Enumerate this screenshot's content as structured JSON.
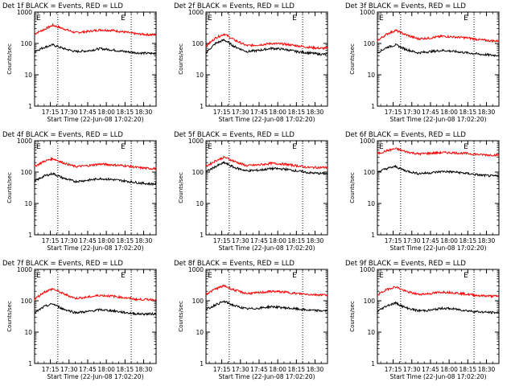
{
  "figure": {
    "ylabel": "Counts/sec",
    "xlabel": "Start Time (22-Jun-08 17:02:20)",
    "x_ticks": [
      "17:15",
      "17:30",
      "17:45",
      "18:00",
      "18:15",
      "18:30"
    ],
    "y_ticks": [
      "1",
      "10",
      "100",
      "1000"
    ],
    "marker_letter": "E",
    "colors": {
      "events": "#000000",
      "lld": "#ff0000",
      "axes": "#000000"
    }
  },
  "chart_data": [
    {
      "type": "line",
      "title": "Det 1f BLACK = Events, RED = LLD",
      "x_ticks": [
        "17:15",
        "17:30",
        "17:45",
        "18:00",
        "18:15",
        "18:30"
      ],
      "xlim": [
        "17:02:20",
        "18:40:00"
      ],
      "ylim": [
        1,
        1000
      ],
      "yscale": "log",
      "x": [
        "17:02",
        "17:10",
        "17:17",
        "17:25",
        "17:35",
        "17:45",
        "17:55",
        "18:05",
        "18:15",
        "18:25",
        "18:35"
      ],
      "series": [
        {
          "name": "LLD",
          "color": "#ff0000",
          "values": [
            200,
            280,
            380,
            300,
            220,
            240,
            270,
            260,
            230,
            200,
            190
          ]
        },
        {
          "name": "Events",
          "color": "#000000",
          "values": [
            55,
            75,
            90,
            70,
            55,
            58,
            68,
            62,
            55,
            50,
            48
          ]
        }
      ]
    },
    {
      "type": "line",
      "title": "Det 2f BLACK = Events, RED = LLD",
      "x_ticks": [
        "17:15",
        "17:30",
        "17:45",
        "18:00",
        "18:15",
        "18:30"
      ],
      "xlim": [
        "17:02:20",
        "18:40:00"
      ],
      "ylim": [
        1,
        1000
      ],
      "yscale": "log",
      "x": [
        "17:02",
        "17:10",
        "17:17",
        "17:25",
        "17:35",
        "17:45",
        "17:55",
        "18:05",
        "18:15",
        "18:25",
        "18:35"
      ],
      "series": [
        {
          "name": "LLD",
          "color": "#ff0000",
          "values": [
            80,
            150,
            200,
            130,
            85,
            90,
            100,
            95,
            85,
            75,
            70
          ]
        },
        {
          "name": "Events",
          "color": "#000000",
          "values": [
            50,
            100,
            130,
            80,
            55,
            60,
            70,
            65,
            55,
            50,
            45
          ]
        }
      ]
    },
    {
      "type": "line",
      "title": "Det 3f BLACK = Events, RED = LLD",
      "x_ticks": [
        "17:15",
        "17:30",
        "17:45",
        "18:00",
        "18:15",
        "18:30"
      ],
      "xlim": [
        "17:02:20",
        "18:40:00"
      ],
      "ylim": [
        1,
        1000
      ],
      "yscale": "log",
      "x": [
        "17:02",
        "17:10",
        "17:17",
        "17:25",
        "17:35",
        "17:45",
        "17:55",
        "18:05",
        "18:15",
        "18:25",
        "18:35"
      ],
      "series": [
        {
          "name": "LLD",
          "color": "#ff0000",
          "values": [
            120,
            200,
            260,
            190,
            140,
            150,
            170,
            160,
            150,
            130,
            120
          ]
        },
        {
          "name": "Events",
          "color": "#000000",
          "values": [
            50,
            75,
            90,
            65,
            50,
            55,
            60,
            55,
            50,
            45,
            42
          ]
        }
      ]
    },
    {
      "type": "line",
      "title": "Det 4f BLACK = Events, RED = LLD",
      "x_ticks": [
        "17:15",
        "17:30",
        "17:45",
        "18:00",
        "18:15",
        "18:30"
      ],
      "xlim": [
        "17:02:20",
        "18:40:00"
      ],
      "ylim": [
        1,
        1000
      ],
      "yscale": "log",
      "x": [
        "17:02",
        "17:10",
        "17:17",
        "17:25",
        "17:35",
        "17:45",
        "17:55",
        "18:05",
        "18:15",
        "18:25",
        "18:35"
      ],
      "series": [
        {
          "name": "LLD",
          "color": "#ff0000",
          "values": [
            150,
            220,
            270,
            200,
            150,
            160,
            180,
            170,
            160,
            140,
            130
          ]
        },
        {
          "name": "Events",
          "color": "#000000",
          "values": [
            50,
            75,
            90,
            65,
            50,
            55,
            62,
            58,
            52,
            46,
            42
          ]
        }
      ]
    },
    {
      "type": "line",
      "title": "Det 5f BLACK = Events, RED = LLD",
      "x_ticks": [
        "17:15",
        "17:30",
        "17:45",
        "18:00",
        "18:15",
        "18:30"
      ],
      "xlim": [
        "17:02:20",
        "18:40:00"
      ],
      "ylim": [
        1,
        1000
      ],
      "yscale": "log",
      "x": [
        "17:02",
        "17:10",
        "17:17",
        "17:25",
        "17:35",
        "17:45",
        "17:55",
        "18:05",
        "18:15",
        "18:25",
        "18:35"
      ],
      "series": [
        {
          "name": "LLD",
          "color": "#ff0000",
          "values": [
            150,
            230,
            300,
            220,
            160,
            170,
            190,
            180,
            160,
            140,
            140
          ]
        },
        {
          "name": "Events",
          "color": "#000000",
          "values": [
            100,
            150,
            200,
            140,
            110,
            115,
            130,
            125,
            110,
            95,
            90
          ]
        }
      ]
    },
    {
      "type": "line",
      "title": "Det 6f BLACK = Events, RED = LLD",
      "x_ticks": [
        "17:15",
        "17:30",
        "17:45",
        "18:00",
        "18:15",
        "18:30"
      ],
      "xlim": [
        "17:02:20",
        "18:40:00"
      ],
      "ylim": [
        1,
        1000
      ],
      "yscale": "log",
      "x": [
        "17:02",
        "17:10",
        "17:17",
        "17:25",
        "17:35",
        "17:45",
        "17:55",
        "18:05",
        "18:15",
        "18:25",
        "18:35"
      ],
      "series": [
        {
          "name": "LLD",
          "color": "#ff0000",
          "values": [
            380,
            480,
            560,
            450,
            380,
            400,
            420,
            410,
            390,
            360,
            350
          ]
        },
        {
          "name": "Events",
          "color": "#000000",
          "values": [
            100,
            130,
            150,
            110,
            90,
            95,
            105,
            100,
            90,
            80,
            75
          ]
        }
      ]
    },
    {
      "type": "line",
      "title": "Det 7f BLACK = Events, RED = LLD",
      "x_ticks": [
        "17:15",
        "17:30",
        "17:45",
        "18:00",
        "18:15",
        "18:30"
      ],
      "xlim": [
        "17:02:20",
        "18:40:00"
      ],
      "ylim": [
        1,
        1000
      ],
      "yscale": "log",
      "x": [
        "17:02",
        "17:10",
        "17:17",
        "17:25",
        "17:35",
        "17:45",
        "17:55",
        "18:05",
        "18:15",
        "18:25",
        "18:35"
      ],
      "series": [
        {
          "name": "LLD",
          "color": "#ff0000",
          "values": [
            110,
            190,
            240,
            170,
            120,
            130,
            150,
            140,
            125,
            110,
            110
          ]
        },
        {
          "name": "Events",
          "color": "#000000",
          "values": [
            40,
            65,
            80,
            55,
            42,
            45,
            52,
            48,
            42,
            38,
            38
          ]
        }
      ]
    },
    {
      "type": "line",
      "title": "Det 8f BLACK = Events, RED = LLD",
      "x_ticks": [
        "17:15",
        "17:30",
        "17:45",
        "18:00",
        "18:15",
        "18:30"
      ],
      "xlim": [
        "17:02:20",
        "18:40:00"
      ],
      "ylim": [
        1,
        1000
      ],
      "yscale": "log",
      "x": [
        "17:02",
        "17:10",
        "17:17",
        "17:25",
        "17:35",
        "17:45",
        "17:55",
        "18:05",
        "18:15",
        "18:25",
        "18:35"
      ],
      "series": [
        {
          "name": "LLD",
          "color": "#ff0000",
          "values": [
            160,
            240,
            300,
            220,
            170,
            180,
            200,
            190,
            170,
            160,
            155
          ]
        },
        {
          "name": "Events",
          "color": "#000000",
          "values": [
            50,
            75,
            95,
            70,
            55,
            58,
            65,
            60,
            55,
            50,
            48
          ]
        }
      ]
    },
    {
      "type": "line",
      "title": "Det 9f BLACK = Events, RED = LLD",
      "x_ticks": [
        "17:15",
        "17:30",
        "17:45",
        "18:00",
        "18:15",
        "18:30"
      ],
      "xlim": [
        "17:02:20",
        "18:40:00"
      ],
      "ylim": [
        1,
        1000
      ],
      "yscale": "log",
      "x": [
        "17:02",
        "17:10",
        "17:17",
        "17:25",
        "17:35",
        "17:45",
        "17:55",
        "18:05",
        "18:15",
        "18:25",
        "18:35"
      ],
      "series": [
        {
          "name": "LLD",
          "color": "#ff0000",
          "values": [
            150,
            230,
            280,
            200,
            160,
            170,
            190,
            180,
            160,
            145,
            140
          ]
        },
        {
          "name": "Events",
          "color": "#000000",
          "values": [
            45,
            70,
            85,
            60,
            48,
            50,
            58,
            54,
            48,
            44,
            42
          ]
        }
      ]
    }
  ]
}
